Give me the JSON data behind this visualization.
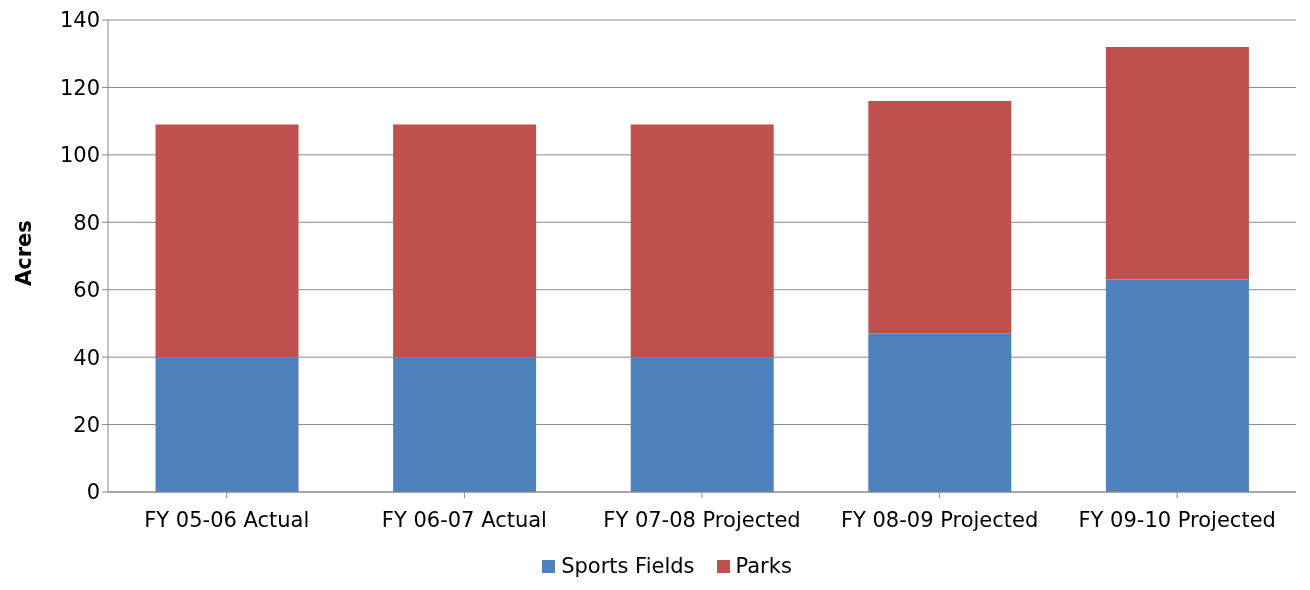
{
  "chart_data": {
    "type": "bar",
    "stacked": true,
    "ylabel": "Acres",
    "categories": [
      "FY 05-06 Actual",
      "FY 06-07 Actual",
      "FY 07-08 Projected",
      "FY 08-09 Projected",
      "FY 09-10 Projected"
    ],
    "series": [
      {
        "name": "Sports Fields",
        "color": "#4f81bd",
        "values": [
          40,
          40,
          40,
          47,
          63
        ]
      },
      {
        "name": "Parks",
        "color": "#c0504d",
        "values": [
          69,
          69,
          69,
          69,
          69
        ]
      }
    ],
    "ylim": [
      0,
      140
    ],
    "yticks": [
      0,
      20,
      40,
      60,
      80,
      100,
      120,
      140
    ],
    "grid": "y",
    "legend": "bottom"
  }
}
